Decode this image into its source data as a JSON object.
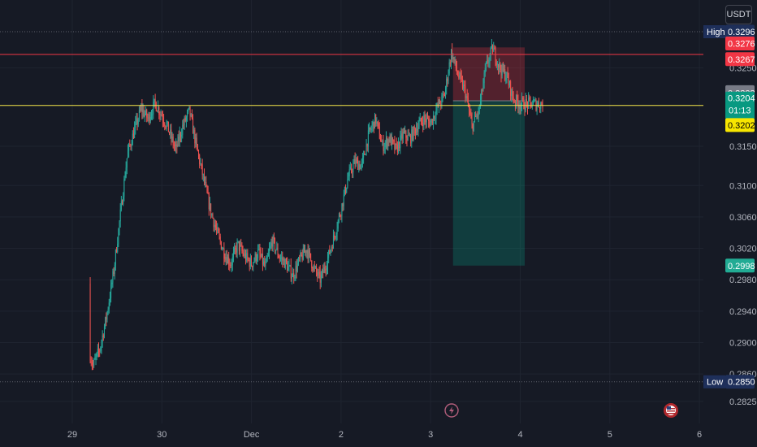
{
  "currency": "USDT",
  "colors": {
    "background": "#161a25",
    "grid": "#1f2430",
    "up": "#26a69a",
    "down": "#ef5350",
    "axis_text": "#b2b5be",
    "resistance": "#f23645",
    "support": "#f5e84b",
    "label_dark": "#1e2f5a",
    "label_gray": "#787b86",
    "label_teal": "#089981",
    "label_green": "#22ab94",
    "label_red": "#f23645",
    "label_yellow": "#f7e600"
  },
  "chart_data": {
    "type": "candlestick",
    "grid": true,
    "ylim": [
      0.2815,
      0.3312
    ],
    "x_ticks": [
      {
        "label": "29",
        "day": 1
      },
      {
        "label": "30",
        "day": 2
      },
      {
        "label": "Dec",
        "day": 3
      },
      {
        "label": "2",
        "day": 4
      },
      {
        "label": "3",
        "day": 5
      },
      {
        "label": "4",
        "day": 6
      },
      {
        "label": "5",
        "day": 7
      },
      {
        "label": "6",
        "day": 8
      }
    ],
    "y_ticks": [
      "0.3250",
      "0.3150",
      "0.3100",
      "0.3060",
      "0.3020",
      "0.2980",
      "0.2940",
      "0.2900",
      "0.2860",
      "0.2825"
    ],
    "price_series_close": [
      [
        0.2975,
        0.2945,
        0.2905,
        0.287,
        0.2892,
        0.2935,
        0.299,
        0.3065,
        0.314,
        0.317,
        0.3198,
        0.3185,
        0.3205
      ],
      [
        0.319,
        0.317,
        0.3145,
        0.3175,
        0.3195,
        0.315,
        0.311,
        0.307,
        0.304,
        0.3015,
        0.3,
        0.3025,
        0.301
      ],
      [
        0.3,
        0.3015,
        0.2995,
        0.303,
        0.301,
        0.3,
        0.2985,
        0.3005,
        0.302,
        0.2995,
        0.298,
        0.3005,
        0.3035
      ],
      [
        0.307,
        0.311,
        0.313,
        0.3125,
        0.3165,
        0.3185,
        0.315,
        0.316,
        0.3145,
        0.3165,
        0.316,
        0.3175,
        0.3185
      ],
      [
        0.318,
        0.32,
        0.3215,
        0.327,
        0.324,
        0.322,
        0.3175,
        0.3195,
        0.325,
        0.3275,
        0.325,
        0.324,
        0.321
      ],
      [
        0.3204
      ]
    ],
    "high": {
      "label": "High",
      "value": "0.3296"
    },
    "low": {
      "label": "Low",
      "value": "0.2850"
    },
    "current_price": {
      "value": "0.3204",
      "countdown": "01:13"
    },
    "price_labels": [
      {
        "value": "0.3276",
        "color_key": "label_red"
      },
      {
        "value": "0.3267",
        "color_key": "label_red"
      },
      {
        "value": "0.3208",
        "color_key": "label_gray"
      },
      {
        "value": "0.3202",
        "color_key": "label_yellow"
      },
      {
        "value": "0.2998",
        "color_key": "label_green"
      }
    ],
    "resistance_line": 0.3267,
    "support_line": 0.3202,
    "position": {
      "type": "short",
      "entry": 0.3208,
      "stop": 0.3276,
      "target": 0.2998,
      "start_day": 5.25,
      "end_day": 6.05
    }
  },
  "icons": {
    "lightning": "lightning-icon",
    "flag": "us-flag-icon"
  }
}
